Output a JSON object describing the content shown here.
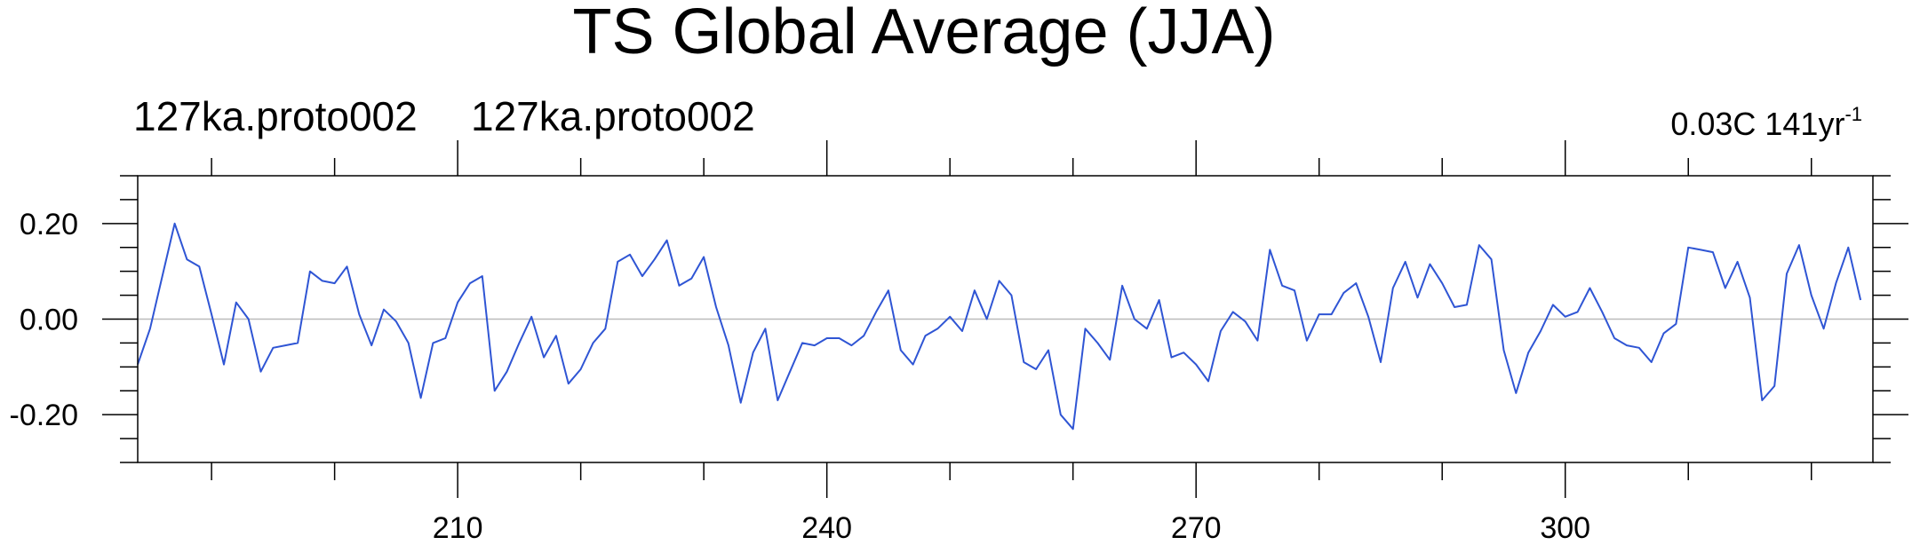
{
  "chart_data": {
    "type": "line",
    "title": "TS Global Average (JJA)",
    "subtitle_left": [
      "127ka.proto002",
      "127ka.proto002"
    ],
    "trend_label": {
      "base": "0.03C 141yr",
      "sup": "-1"
    },
    "xlabel": "",
    "ylabel": "",
    "xlim": [
      184,
      325
    ],
    "ylim": [
      -0.3,
      0.3
    ],
    "x_major_ticks": [
      210,
      240,
      270,
      300
    ],
    "x_minor_ticks": [
      190,
      200,
      220,
      230,
      250,
      260,
      280,
      290,
      310,
      320
    ],
    "y_major_ticks": [
      0.2,
      0.0,
      -0.2
    ],
    "y_tick_labels": [
      "0.20",
      "0.00",
      "-0.20"
    ],
    "y_minor_ticks": [
      0.3,
      0.25,
      0.15,
      0.1,
      0.05,
      -0.05,
      -0.1,
      -0.15,
      -0.25,
      -0.3
    ],
    "reference_line": 0.0,
    "grid": false,
    "line_color": "#2f55d4",
    "x": [
      184,
      185,
      186,
      187,
      188,
      189,
      190,
      191,
      192,
      193,
      194,
      195,
      196,
      197,
      198,
      199,
      200,
      201,
      202,
      203,
      204,
      205,
      206,
      207,
      208,
      209,
      210,
      211,
      212,
      213,
      214,
      215,
      216,
      217,
      218,
      219,
      220,
      221,
      222,
      223,
      224,
      225,
      226,
      227,
      228,
      229,
      230,
      231,
      232,
      233,
      234,
      235,
      236,
      237,
      238,
      239,
      240,
      241,
      242,
      243,
      244,
      245,
      246,
      247,
      248,
      249,
      250,
      251,
      252,
      253,
      254,
      255,
      256,
      257,
      258,
      259,
      260,
      261,
      262,
      263,
      264,
      265,
      266,
      267,
      268,
      269,
      270,
      271,
      272,
      273,
      274,
      275,
      276,
      277,
      278,
      279,
      280,
      281,
      282,
      283,
      284,
      285,
      286,
      287,
      288,
      289,
      290,
      291,
      292,
      293,
      294,
      295,
      296,
      297,
      298,
      299,
      300,
      301,
      302,
      303,
      304,
      305,
      306,
      307,
      308,
      309,
      310,
      311,
      312,
      313,
      314,
      315,
      316,
      317,
      318,
      319,
      320,
      321,
      322,
      323,
      324
    ],
    "series": [
      {
        "values": [
          -0.095,
          -0.02,
          0.09,
          0.2,
          0.125,
          0.11,
          0.01,
          -0.095,
          0.035,
          0.0,
          -0.11,
          -0.06,
          -0.055,
          -0.05,
          0.1,
          0.08,
          0.075,
          0.11,
          0.01,
          -0.055,
          0.02,
          -0.005,
          -0.05,
          -0.165,
          -0.05,
          -0.04,
          0.035,
          0.075,
          0.09,
          -0.15,
          -0.11,
          -0.05,
          0.005,
          -0.08,
          -0.035,
          -0.135,
          -0.105,
          -0.05,
          -0.02,
          0.12,
          0.135,
          0.09,
          0.125,
          0.165,
          0.07,
          0.085,
          0.13,
          0.025,
          -0.055,
          -0.175,
          -0.07,
          -0.02,
          -0.17,
          -0.11,
          -0.05,
          -0.055,
          -0.04,
          -0.04,
          -0.055,
          -0.035,
          0.015,
          0.06,
          -0.065,
          -0.095,
          -0.035,
          -0.02,
          0.005,
          -0.025,
          0.06,
          0.0,
          0.08,
          0.05,
          -0.09,
          -0.105,
          -0.065,
          -0.2,
          -0.23,
          -0.02,
          -0.05,
          -0.085,
          0.07,
          0.0,
          -0.02,
          0.04,
          -0.08,
          -0.07,
          -0.095,
          -0.13,
          -0.025,
          0.015,
          -0.005,
          -0.045,
          0.145,
          0.07,
          0.06,
          -0.045,
          0.01,
          0.01,
          0.055,
          0.075,
          0.005,
          -0.09,
          0.065,
          0.12,
          0.045,
          0.115,
          0.075,
          0.025,
          0.03,
          0.155,
          0.125,
          -0.065,
          -0.155,
          -0.07,
          -0.025,
          0.03,
          0.005,
          0.015,
          0.065,
          0.015,
          -0.04,
          -0.055,
          -0.06,
          -0.09,
          -0.03,
          -0.01,
          0.15,
          0.145,
          0.14,
          0.065,
          0.12,
          0.045,
          -0.17,
          -0.14,
          0.095,
          0.155,
          0.05,
          -0.02,
          0.075,
          0.15,
          0.04
        ]
      }
    ]
  }
}
